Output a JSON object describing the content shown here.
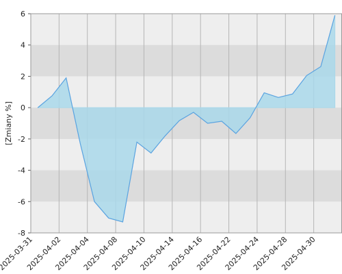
{
  "chart_data": {
    "type": "area",
    "y_label": "[Zmiany %]",
    "categories": [
      "2025-03-31",
      null,
      "2025-04-02",
      null,
      "2025-04-04",
      null,
      "2025-04-08",
      null,
      "2025-04-10",
      null,
      "2025-04-14",
      null,
      "2025-04-16",
      null,
      "2025-04-22",
      null,
      "2025-04-24",
      null,
      "2025-04-28",
      null,
      "2025-04-30",
      null
    ],
    "values": [
      0,
      0.75,
      1.9,
      -2.3,
      -6.0,
      -7.05,
      -7.3,
      -2.2,
      -2.9,
      -1.8,
      -0.83,
      -0.3,
      -1.0,
      -0.87,
      -1.65,
      -0.65,
      0.95,
      0.65,
      0.87,
      2.05,
      2.62,
      5.9
    ],
    "color": "#5ba3e0",
    "fill": "#a9d8ea",
    "ylim": [
      -8,
      6
    ],
    "yticks": [
      -8,
      -6,
      -4,
      -2,
      0,
      2,
      4,
      6
    ],
    "grid": true,
    "bands": true
  }
}
